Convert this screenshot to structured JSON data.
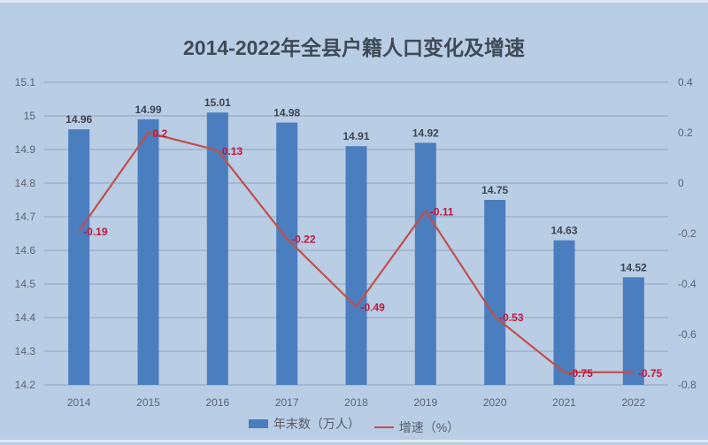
{
  "chart_data": {
    "type": "bar+line",
    "title": "2014-2022年全县户籍人口变化及增速",
    "categories": [
      "2014",
      "2015",
      "2016",
      "2017",
      "2018",
      "2019",
      "2020",
      "2021",
      "2022"
    ],
    "series": [
      {
        "name": "年末数（万人）",
        "type": "bar",
        "axis": "left",
        "color": "#4a7ebf",
        "values": [
          14.96,
          14.99,
          15.01,
          14.98,
          14.91,
          14.92,
          14.75,
          14.63,
          14.52
        ],
        "labels": [
          "14.96",
          "14.99",
          "15.01",
          "14.98",
          "14.91",
          "14.92",
          "14.75",
          "14.63",
          "14.52"
        ]
      },
      {
        "name": "增速（%）",
        "type": "line",
        "axis": "right",
        "color": "#c0504d",
        "values": [
          -0.19,
          0.2,
          0.13,
          -0.22,
          -0.49,
          -0.11,
          -0.53,
          -0.75,
          -0.75
        ],
        "labels": [
          "-0.19",
          "0.2",
          "0.13",
          "-0.22",
          "-0.49",
          "-0.11",
          "-0.53",
          "-0.75",
          "-0.75"
        ]
      }
    ],
    "left_axis": {
      "ylim": [
        14.2,
        15.1
      ],
      "ticks": [
        "15.1",
        "15",
        "14.9",
        "14.8",
        "14.7",
        "14.6",
        "14.5",
        "14.4",
        "14.3",
        "14.2"
      ]
    },
    "right_axis": {
      "ylim": [
        -0.8,
        0.4
      ],
      "ticks": [
        "0.4",
        "0.2",
        "0",
        "-0.2",
        "-0.4",
        "-0.6",
        "-0.8"
      ]
    },
    "grid": true,
    "legend_position": "bottom",
    "xlabel": "",
    "ylabel": ""
  },
  "legend": {
    "bar_label": "年末数（万人）",
    "line_label": "增速（%）"
  }
}
